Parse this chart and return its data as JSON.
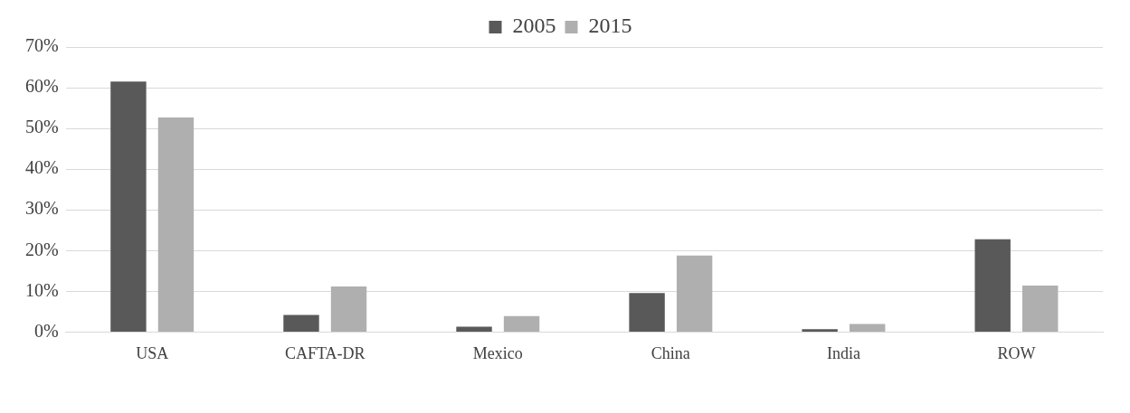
{
  "chart_data": {
    "type": "bar",
    "categories": [
      "USA",
      "CAFTA-DR",
      "Mexico",
      "China",
      "India",
      "ROW"
    ],
    "series": [
      {
        "name": "2005",
        "color": "#595959",
        "values": [
          61.5,
          4.2,
          1.3,
          9.6,
          0.7,
          22.8
        ]
      },
      {
        "name": "2015",
        "color": "#afafaf",
        "values": [
          52.7,
          11.2,
          3.9,
          18.8,
          2.0,
          11.4
        ]
      }
    ],
    "ylim": [
      0,
      70
    ],
    "yticks": [
      {
        "value": 0,
        "label": "0%"
      },
      {
        "value": 10,
        "label": "10%"
      },
      {
        "value": 20,
        "label": "20%"
      },
      {
        "value": 30,
        "label": "30%"
      },
      {
        "value": 40,
        "label": "40%"
      },
      {
        "value": 50,
        "label": "50%"
      },
      {
        "value": 60,
        "label": "60%"
      },
      {
        "value": 70,
        "label": "70%"
      }
    ],
    "grid": "y",
    "legend": "top"
  }
}
